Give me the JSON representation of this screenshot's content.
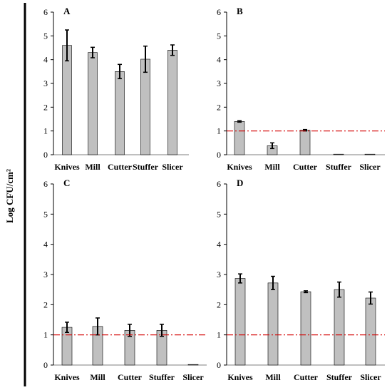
{
  "ylabel": "Log CFU/cm²",
  "threshold_color": "#d40000",
  "bar_color": "#c0c0c0",
  "chart_data": [
    {
      "type": "bar",
      "panel": "A",
      "categories": [
        "Knives",
        "Mill",
        "Cutter",
        "Stuffer",
        "Slicer"
      ],
      "values": [
        4.6,
        4.3,
        3.5,
        4.02,
        4.4
      ],
      "errors": [
        0.65,
        0.22,
        0.3,
        0.55,
        0.22
      ],
      "ylim": [
        0,
        6
      ],
      "yticks": [
        0,
        1,
        2,
        3,
        4,
        5,
        6
      ],
      "threshold": null
    },
    {
      "type": "bar",
      "panel": "B",
      "categories": [
        "Knives",
        "Mill",
        "Cutter",
        "Stuffer",
        "Slicer"
      ],
      "values": [
        1.4,
        0.38,
        1.03,
        0.02,
        0.02
      ],
      "errors": [
        0.03,
        0.12,
        0.03,
        0,
        0
      ],
      "ylim": [
        0,
        6
      ],
      "yticks": [
        0,
        1,
        2,
        3,
        4,
        5,
        6
      ],
      "threshold": 1.0
    },
    {
      "type": "bar",
      "panel": "C",
      "categories": [
        "Knives",
        "Mill",
        "Cutter",
        "Stuffer",
        "Slicer"
      ],
      "values": [
        1.25,
        1.28,
        1.15,
        1.15,
        0.0
      ],
      "errors": [
        0.17,
        0.28,
        0.2,
        0.2,
        0
      ],
      "ylim": [
        0,
        6
      ],
      "yticks": [
        0,
        1,
        2,
        3,
        4,
        5,
        6
      ],
      "threshold": 1.0
    },
    {
      "type": "bar",
      "panel": "D",
      "categories": [
        "Knives",
        "Mill",
        "Cutter",
        "Stuffer",
        "Slicer"
      ],
      "values": [
        2.87,
        2.72,
        2.43,
        2.5,
        2.22
      ],
      "errors": [
        0.15,
        0.22,
        0.03,
        0.25,
        0.2
      ],
      "ylim": [
        0,
        6
      ],
      "yticks": [
        0,
        1,
        2,
        3,
        4,
        5,
        6
      ],
      "threshold": 1.0
    }
  ]
}
